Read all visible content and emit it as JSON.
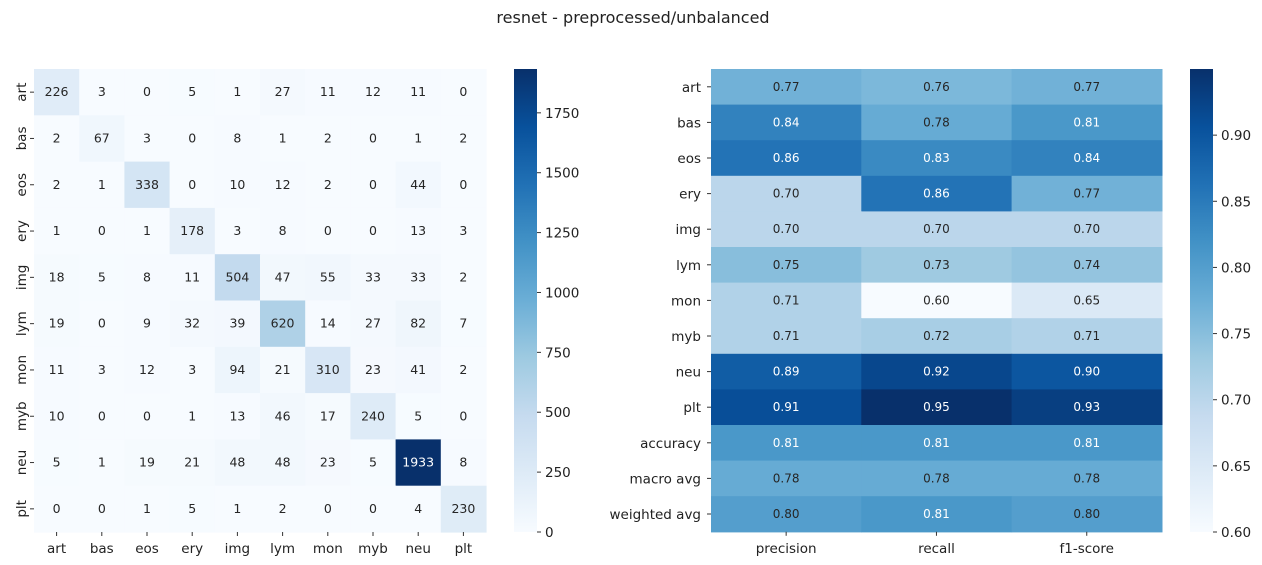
{
  "title": "resnet - preprocessed/unbalanced",
  "colormap": {
    "name": "Blues",
    "stops": [
      "#f7fbff",
      "#deebf7",
      "#c6dbef",
      "#9ecae1",
      "#6baed6",
      "#4292c6",
      "#2171b5",
      "#08519c",
      "#08306b"
    ]
  },
  "chart_data": [
    {
      "type": "heatmap",
      "title": "",
      "row_labels": [
        "art",
        "bas",
        "eos",
        "ery",
        "img",
        "lym",
        "mon",
        "myb",
        "neu",
        "plt"
      ],
      "col_labels": [
        "art",
        "bas",
        "eos",
        "ery",
        "img",
        "lym",
        "mon",
        "myb",
        "neu",
        "plt"
      ],
      "values": [
        [
          226,
          3,
          0,
          5,
          1,
          27,
          11,
          12,
          11,
          0
        ],
        [
          2,
          67,
          3,
          0,
          8,
          1,
          2,
          0,
          1,
          2
        ],
        [
          2,
          1,
          338,
          0,
          10,
          12,
          2,
          0,
          44,
          0
        ],
        [
          1,
          0,
          1,
          178,
          3,
          8,
          0,
          0,
          13,
          3
        ],
        [
          18,
          5,
          8,
          11,
          504,
          47,
          55,
          33,
          33,
          2
        ],
        [
          19,
          0,
          9,
          32,
          39,
          620,
          14,
          27,
          82,
          7
        ],
        [
          11,
          3,
          12,
          3,
          94,
          21,
          310,
          23,
          41,
          2
        ],
        [
          10,
          0,
          0,
          1,
          13,
          46,
          17,
          240,
          5,
          0
        ],
        [
          5,
          1,
          19,
          21,
          48,
          48,
          23,
          5,
          1933,
          8
        ],
        [
          0,
          0,
          1,
          5,
          1,
          2,
          0,
          0,
          4,
          230
        ]
      ],
      "value_format": "int",
      "vmin": 0,
      "vmax": 1933,
      "colorbar": {
        "ticks": [
          0,
          250,
          500,
          750,
          1000,
          1250,
          1500,
          1750
        ],
        "tick_labels": [
          "0",
          "250",
          "500",
          "750",
          "1000",
          "1250",
          "1500",
          "1750"
        ]
      }
    },
    {
      "type": "heatmap",
      "title": "",
      "row_labels": [
        "art",
        "bas",
        "eos",
        "ery",
        "img",
        "lym",
        "mon",
        "myb",
        "neu",
        "plt",
        "accuracy",
        "macro avg",
        "weighted avg"
      ],
      "col_labels": [
        "precision",
        "recall",
        "f1-score"
      ],
      "values": [
        [
          0.77,
          0.76,
          0.77
        ],
        [
          0.84,
          0.78,
          0.81
        ],
        [
          0.86,
          0.83,
          0.84
        ],
        [
          0.7,
          0.86,
          0.77
        ],
        [
          0.7,
          0.7,
          0.7
        ],
        [
          0.75,
          0.73,
          0.74
        ],
        [
          0.71,
          0.6,
          0.65
        ],
        [
          0.71,
          0.72,
          0.71
        ],
        [
          0.89,
          0.92,
          0.9
        ],
        [
          0.91,
          0.95,
          0.93
        ],
        [
          0.81,
          0.81,
          0.81
        ],
        [
          0.78,
          0.78,
          0.78
        ],
        [
          0.8,
          0.81,
          0.8
        ]
      ],
      "value_format": "2dp",
      "vmin": 0.6,
      "vmax": 0.95,
      "colorbar": {
        "ticks": [
          0.6,
          0.65,
          0.7,
          0.75,
          0.8,
          0.85,
          0.9
        ],
        "tick_labels": [
          "0.60",
          "0.65",
          "0.70",
          "0.75",
          "0.80",
          "0.85",
          "0.90"
        ]
      }
    }
  ]
}
